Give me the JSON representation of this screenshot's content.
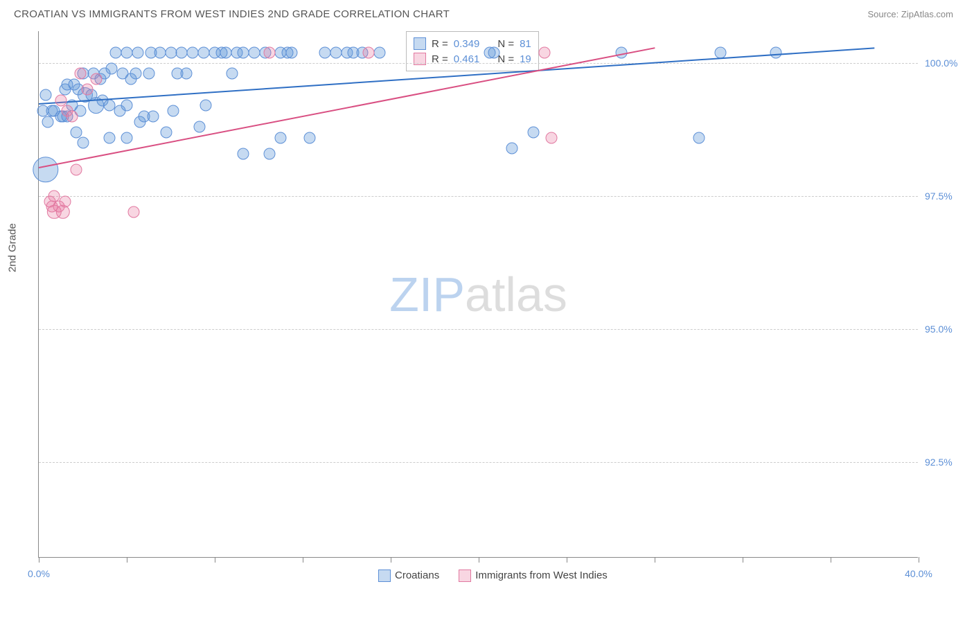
{
  "title": "CROATIAN VS IMMIGRANTS FROM WEST INDIES 2ND GRADE CORRELATION CHART",
  "source_label": "Source: ",
  "source_value": "ZipAtlas.com",
  "ylabel": "2nd Grade",
  "watermark_1": "ZIP",
  "watermark_2": "atlas",
  "chart": {
    "type": "scatter",
    "xlim": [
      0,
      40
    ],
    "ylim": [
      90.7,
      100.6
    ],
    "xtick_positions": [
      0,
      4,
      8,
      12,
      16,
      20,
      24,
      28,
      32,
      36,
      40
    ],
    "xtick_labels": {
      "0": "0.0%",
      "40": "40.0%"
    },
    "ytick_positions": [
      92.5,
      95.0,
      97.5,
      100.0
    ],
    "ytick_labels": [
      "92.5%",
      "95.0%",
      "97.5%",
      "100.0%"
    ],
    "background_color": "#ffffff",
    "grid_color": "#cccccc",
    "series": [
      {
        "name": "Croatians",
        "color_fill": "rgba(93,148,214,0.35)",
        "color_stroke": "#5c8fd6",
        "r_value": "0.349",
        "n_value": "81",
        "trend": {
          "x1": 0,
          "y1": 99.25,
          "x2": 38,
          "y2": 100.3,
          "color": "#2f6fc4",
          "width": 2
        },
        "points": [
          {
            "x": 0.2,
            "y": 99.1,
            "s": 10
          },
          {
            "x": 0.3,
            "y": 99.4,
            "s": 10
          },
          {
            "x": 0.3,
            "y": 98.0,
            "s": 22
          },
          {
            "x": 0.6,
            "y": 99.1,
            "s": 10
          },
          {
            "x": 0.7,
            "y": 99.1,
            "s": 10
          },
          {
            "x": 0.4,
            "y": 98.9,
            "s": 10
          },
          {
            "x": 1.0,
            "y": 99.0,
            "s": 10
          },
          {
            "x": 1.1,
            "y": 99.0,
            "s": 10
          },
          {
            "x": 1.2,
            "y": 99.5,
            "s": 10
          },
          {
            "x": 1.3,
            "y": 99.6,
            "s": 10
          },
          {
            "x": 1.3,
            "y": 99.0,
            "s": 10
          },
          {
            "x": 1.5,
            "y": 99.2,
            "s": 10
          },
          {
            "x": 1.6,
            "y": 99.6,
            "s": 10
          },
          {
            "x": 1.7,
            "y": 98.7,
            "s": 10
          },
          {
            "x": 1.8,
            "y": 99.5,
            "s": 10
          },
          {
            "x": 1.9,
            "y": 99.1,
            "s": 10
          },
          {
            "x": 2.0,
            "y": 99.8,
            "s": 10
          },
          {
            "x": 2.0,
            "y": 98.5,
            "s": 10
          },
          {
            "x": 2.1,
            "y": 99.4,
            "s": 13
          },
          {
            "x": 2.4,
            "y": 99.4,
            "s": 10
          },
          {
            "x": 2.5,
            "y": 99.8,
            "s": 10
          },
          {
            "x": 2.6,
            "y": 99.2,
            "s": 14
          },
          {
            "x": 2.8,
            "y": 99.7,
            "s": 10
          },
          {
            "x": 2.9,
            "y": 99.3,
            "s": 10
          },
          {
            "x": 3.0,
            "y": 99.8,
            "s": 10
          },
          {
            "x": 3.2,
            "y": 99.2,
            "s": 10
          },
          {
            "x": 3.2,
            "y": 98.6,
            "s": 10
          },
          {
            "x": 3.3,
            "y": 99.9,
            "s": 10
          },
          {
            "x": 3.5,
            "y": 100.2,
            "s": 10
          },
          {
            "x": 3.7,
            "y": 99.1,
            "s": 10
          },
          {
            "x": 3.8,
            "y": 99.8,
            "s": 10
          },
          {
            "x": 4.0,
            "y": 100.2,
            "s": 10
          },
          {
            "x": 4.0,
            "y": 99.2,
            "s": 10
          },
          {
            "x": 4.0,
            "y": 98.6,
            "s": 10
          },
          {
            "x": 4.2,
            "y": 99.7,
            "s": 10
          },
          {
            "x": 4.4,
            "y": 99.8,
            "s": 10
          },
          {
            "x": 4.5,
            "y": 100.2,
            "s": 10
          },
          {
            "x": 4.6,
            "y": 98.9,
            "s": 10
          },
          {
            "x": 4.8,
            "y": 99.0,
            "s": 10
          },
          {
            "x": 5.0,
            "y": 99.8,
            "s": 10
          },
          {
            "x": 5.1,
            "y": 100.2,
            "s": 10
          },
          {
            "x": 5.2,
            "y": 99.0,
            "s": 10
          },
          {
            "x": 5.5,
            "y": 100.2,
            "s": 10
          },
          {
            "x": 5.8,
            "y": 98.7,
            "s": 10
          },
          {
            "x": 6.0,
            "y": 100.2,
            "s": 10
          },
          {
            "x": 6.1,
            "y": 99.1,
            "s": 10
          },
          {
            "x": 6.3,
            "y": 99.8,
            "s": 10
          },
          {
            "x": 6.5,
            "y": 100.2,
            "s": 10
          },
          {
            "x": 6.7,
            "y": 99.8,
            "s": 10
          },
          {
            "x": 7.0,
            "y": 100.2,
            "s": 10
          },
          {
            "x": 7.3,
            "y": 98.8,
            "s": 10
          },
          {
            "x": 7.5,
            "y": 100.2,
            "s": 10
          },
          {
            "x": 7.6,
            "y": 99.2,
            "s": 10
          },
          {
            "x": 8.0,
            "y": 100.2,
            "s": 10
          },
          {
            "x": 8.3,
            "y": 100.2,
            "s": 10
          },
          {
            "x": 8.5,
            "y": 100.2,
            "s": 10
          },
          {
            "x": 8.8,
            "y": 99.8,
            "s": 10
          },
          {
            "x": 9.0,
            "y": 100.2,
            "s": 10
          },
          {
            "x": 9.3,
            "y": 100.2,
            "s": 10
          },
          {
            "x": 9.3,
            "y": 98.3,
            "s": 10
          },
          {
            "x": 9.8,
            "y": 100.2,
            "s": 10
          },
          {
            "x": 10.3,
            "y": 100.2,
            "s": 10
          },
          {
            "x": 10.5,
            "y": 98.3,
            "s": 10
          },
          {
            "x": 11.0,
            "y": 100.2,
            "s": 10
          },
          {
            "x": 11.0,
            "y": 98.6,
            "s": 10
          },
          {
            "x": 11.3,
            "y": 100.2,
            "s": 10
          },
          {
            "x": 11.5,
            "y": 100.2,
            "s": 10
          },
          {
            "x": 12.3,
            "y": 98.6,
            "s": 10
          },
          {
            "x": 13.0,
            "y": 100.2,
            "s": 10
          },
          {
            "x": 13.5,
            "y": 100.2,
            "s": 10
          },
          {
            "x": 14.0,
            "y": 100.2,
            "s": 10
          },
          {
            "x": 14.3,
            "y": 100.2,
            "s": 10
          },
          {
            "x": 14.7,
            "y": 100.2,
            "s": 10
          },
          {
            "x": 15.5,
            "y": 100.2,
            "s": 10
          },
          {
            "x": 20.5,
            "y": 100.2,
            "s": 10
          },
          {
            "x": 20.7,
            "y": 100.2,
            "s": 10
          },
          {
            "x": 22.5,
            "y": 98.7,
            "s": 10
          },
          {
            "x": 21.5,
            "y": 98.4,
            "s": 10
          },
          {
            "x": 26.5,
            "y": 100.2,
            "s": 10
          },
          {
            "x": 30.0,
            "y": 98.6,
            "s": 10
          },
          {
            "x": 31.0,
            "y": 100.2,
            "s": 10
          },
          {
            "x": 33.5,
            "y": 100.2,
            "s": 10
          }
        ]
      },
      {
        "name": "Immigrants from West Indies",
        "color_fill": "rgba(232,120,160,0.3)",
        "color_stroke": "#e178a0",
        "r_value": "0.461",
        "n_value": "19",
        "trend": {
          "x1": 0,
          "y1": 98.05,
          "x2": 28,
          "y2": 100.3,
          "color": "#d94f82",
          "width": 2
        },
        "points": [
          {
            "x": 0.5,
            "y": 97.4,
            "s": 10
          },
          {
            "x": 0.6,
            "y": 97.3,
            "s": 10
          },
          {
            "x": 0.7,
            "y": 97.2,
            "s": 12
          },
          {
            "x": 0.7,
            "y": 97.5,
            "s": 10
          },
          {
            "x": 0.9,
            "y": 97.3,
            "s": 10
          },
          {
            "x": 1.0,
            "y": 99.3,
            "s": 10
          },
          {
            "x": 1.1,
            "y": 97.2,
            "s": 12
          },
          {
            "x": 1.3,
            "y": 99.1,
            "s": 10
          },
          {
            "x": 1.5,
            "y": 99.0,
            "s": 10
          },
          {
            "x": 1.7,
            "y": 98.0,
            "s": 10
          },
          {
            "x": 1.9,
            "y": 99.8,
            "s": 10
          },
          {
            "x": 2.2,
            "y": 99.5,
            "s": 10
          },
          {
            "x": 2.6,
            "y": 99.7,
            "s": 10
          },
          {
            "x": 4.3,
            "y": 97.2,
            "s": 10
          },
          {
            "x": 10.5,
            "y": 100.2,
            "s": 10
          },
          {
            "x": 15.0,
            "y": 100.2,
            "s": 10
          },
          {
            "x": 23.0,
            "y": 100.2,
            "s": 10
          },
          {
            "x": 23.3,
            "y": 98.6,
            "s": 10
          },
          {
            "x": 1.2,
            "y": 97.4,
            "s": 10
          }
        ]
      }
    ]
  },
  "stats_legend": {
    "r_prefix": "R = ",
    "n_prefix": "N = "
  },
  "bottom_legend": {
    "items": [
      "Croatians",
      "Immigrants from West Indies"
    ]
  }
}
